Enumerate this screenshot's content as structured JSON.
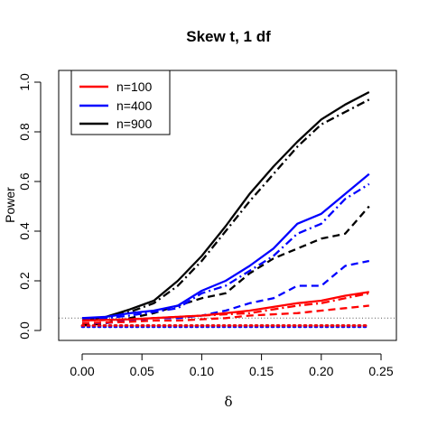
{
  "chart_data": {
    "type": "line",
    "title": "Skew t, 1 df",
    "xlabel": "δ",
    "ylabel": "Power",
    "xlim": [
      0,
      0.25
    ],
    "ylim": [
      0,
      1.0
    ],
    "x_ticks": [
      "0.00",
      "0.05",
      "0.10",
      "0.15",
      "0.20",
      "0.25"
    ],
    "y_ticks": [
      "0.0",
      "0.2",
      "0.4",
      "0.6",
      "0.8",
      "1.0"
    ],
    "legend_position": "top-left",
    "legend": [
      {
        "label": "n=100",
        "color": "#ff0000"
      },
      {
        "label": "n=400",
        "color": "#0000ff"
      },
      {
        "label": "n=900",
        "color": "#000000"
      }
    ],
    "reference_line": {
      "y": 0.05,
      "style": "dotted",
      "color": "#555555"
    },
    "x": [
      0,
      0.02,
      0.04,
      0.06,
      0.08,
      0.1,
      0.12,
      0.14,
      0.16,
      0.18,
      0.2,
      0.22,
      0.24
    ],
    "series": [
      {
        "group": "n=900",
        "color": "#000000",
        "dash": "solid",
        "values": [
          0.04,
          0.055,
          0.085,
          0.12,
          0.2,
          0.3,
          0.42,
          0.55,
          0.66,
          0.76,
          0.85,
          0.91,
          0.96
        ]
      },
      {
        "group": "n=900",
        "color": "#000000",
        "dash": "dashdot",
        "values": [
          0.04,
          0.05,
          0.075,
          0.11,
          0.18,
          0.28,
          0.4,
          0.52,
          0.63,
          0.74,
          0.83,
          0.88,
          0.93
        ]
      },
      {
        "group": "n=900",
        "color": "#000000",
        "dash": "dashed",
        "values": [
          0.02,
          0.03,
          0.05,
          0.07,
          0.1,
          0.13,
          0.15,
          0.23,
          0.29,
          0.33,
          0.37,
          0.39,
          0.5
        ]
      },
      {
        "group": "n=900",
        "color": "#000000",
        "dash": "dotted",
        "values": [
          0.02,
          0.02,
          0.02,
          0.02,
          0.02,
          0.02,
          0.02,
          0.02,
          0.02,
          0.02,
          0.02,
          0.02,
          0.02
        ]
      },
      {
        "group": "n=400",
        "color": "#0000ff",
        "dash": "solid",
        "values": [
          0.05,
          0.055,
          0.07,
          0.08,
          0.1,
          0.16,
          0.2,
          0.26,
          0.33,
          0.43,
          0.47,
          0.55,
          0.63
        ]
      },
      {
        "group": "n=400",
        "color": "#0000ff",
        "dash": "dashdot",
        "values": [
          0.05,
          0.05,
          0.06,
          0.075,
          0.09,
          0.15,
          0.18,
          0.24,
          0.3,
          0.39,
          0.43,
          0.53,
          0.59
        ]
      },
      {
        "group": "n=400",
        "color": "#0000ff",
        "dash": "dashed",
        "values": [
          0.03,
          0.03,
          0.04,
          0.05,
          0.05,
          0.06,
          0.08,
          0.11,
          0.13,
          0.18,
          0.18,
          0.26,
          0.28
        ]
      },
      {
        "group": "n=400",
        "color": "#0000ff",
        "dash": "dotted",
        "values": [
          0.015,
          0.015,
          0.015,
          0.015,
          0.015,
          0.015,
          0.015,
          0.015,
          0.015,
          0.015,
          0.015,
          0.015,
          0.015
        ]
      },
      {
        "group": "n=100",
        "color": "#ff0000",
        "dash": "solid",
        "values": [
          0.04,
          0.042,
          0.045,
          0.05,
          0.055,
          0.06,
          0.07,
          0.08,
          0.095,
          0.11,
          0.12,
          0.14,
          0.155
        ]
      },
      {
        "group": "n=100",
        "color": "#ff0000",
        "dash": "dashdot",
        "values": [
          0.04,
          0.042,
          0.045,
          0.05,
          0.055,
          0.06,
          0.065,
          0.07,
          0.085,
          0.1,
          0.11,
          0.13,
          0.15
        ]
      },
      {
        "group": "n=100",
        "color": "#ff0000",
        "dash": "dashed",
        "values": [
          0.03,
          0.032,
          0.035,
          0.04,
          0.04,
          0.045,
          0.05,
          0.06,
          0.065,
          0.07,
          0.08,
          0.09,
          0.1
        ]
      },
      {
        "group": "n=100",
        "color": "#ff0000",
        "dash": "dotted",
        "values": [
          0.02,
          0.02,
          0.02,
          0.02,
          0.02,
          0.02,
          0.02,
          0.02,
          0.02,
          0.02,
          0.02,
          0.02,
          0.02
        ]
      }
    ]
  }
}
